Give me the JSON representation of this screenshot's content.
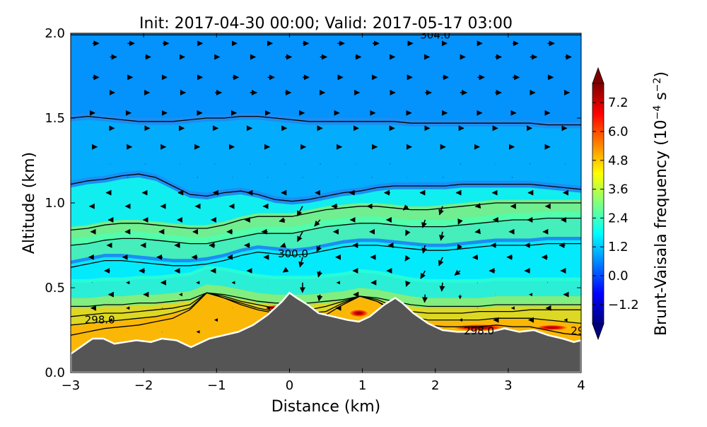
{
  "chart_data": {
    "type": "heatmap",
    "title": "Init: 2017-04-30 00:00; Valid: 2017-05-17 03:00",
    "xlabel": "Distance (km)",
    "ylabel": "Altitude (km)",
    "xlim": [
      -3,
      4
    ],
    "ylim": [
      0.0,
      2.0
    ],
    "x_ticks": [
      -3,
      -2,
      -1,
      0,
      1,
      2,
      3,
      4
    ],
    "x_tick_labels": [
      "−3",
      "−2",
      "−1",
      "0",
      "1",
      "2",
      "3",
      "4"
    ],
    "y_ticks": [
      0.0,
      0.5,
      1.0,
      1.5,
      2.0
    ],
    "y_tick_labels": [
      "0.0",
      "0.5",
      "1.0",
      "1.5",
      "2.0"
    ],
    "colorbar": {
      "label_main": "Brunt-Vaisala frequency (10",
      "label_exp": "−4",
      "label_mid": " s",
      "label_exp2": "−2",
      "label_end": ")",
      "vmin": -2.0,
      "vmax": 8.0,
      "ticks": [
        -1.2,
        0.0,
        1.2,
        2.4,
        3.6,
        4.8,
        6.0,
        7.2
      ],
      "tick_labels": [
        "−1.2",
        "0.0",
        "1.2",
        "2.4",
        "3.6",
        "4.8",
        "6.0",
        "7.2"
      ],
      "colormap": [
        "#00007f",
        "#0000ff",
        "#007fff",
        "#00ffff",
        "#7fff7f",
        "#ffff00",
        "#ff7f00",
        "#ff0000",
        "#7f0000"
      ],
      "extend": "both"
    },
    "terrain": {
      "color": "#555555",
      "x": [
        -3.0,
        -2.8,
        -2.7,
        -2.55,
        -2.4,
        -2.25,
        -2.1,
        -1.9,
        -1.75,
        -1.55,
        -1.35,
        -1.3,
        -1.1,
        -0.9,
        -0.7,
        -0.5,
        -0.3,
        -0.1,
        0.0,
        0.1,
        0.25,
        0.4,
        0.6,
        0.8,
        0.95,
        1.1,
        1.3,
        1.45,
        1.55,
        1.7,
        1.9,
        2.1,
        2.3,
        2.55,
        2.75,
        2.95,
        3.15,
        3.35,
        3.55,
        3.75,
        3.9,
        4.0
      ],
      "y": [
        0.11,
        0.17,
        0.2,
        0.2,
        0.17,
        0.18,
        0.19,
        0.18,
        0.2,
        0.19,
        0.15,
        0.16,
        0.2,
        0.22,
        0.24,
        0.28,
        0.34,
        0.42,
        0.47,
        0.44,
        0.4,
        0.35,
        0.33,
        0.31,
        0.3,
        0.33,
        0.4,
        0.44,
        0.41,
        0.35,
        0.29,
        0.25,
        0.24,
        0.24,
        0.24,
        0.26,
        0.24,
        0.25,
        0.22,
        0.2,
        0.18,
        0.19
      ]
    },
    "isentropes": [
      {
        "y": [
          0.22,
          0.24,
          0.26,
          0.27,
          0.28,
          0.3,
          0.32,
          0.37,
          0.47,
          0.44,
          0.4,
          0.37,
          0.35,
          0.33,
          0.32,
          0.34,
          0.4,
          0.45,
          0.42,
          0.36,
          0.3,
          0.28,
          0.27,
          0.27,
          0.27,
          0.28,
          0.27,
          0.27,
          0.25,
          0.23,
          0.22
        ]
      },
      {
        "y": [
          0.28,
          0.29,
          0.3,
          0.31,
          0.32,
          0.33,
          0.35,
          0.38,
          0.47,
          0.44,
          0.41,
          0.38,
          0.36,
          0.35,
          0.35,
          0.36,
          0.41,
          0.45,
          0.42,
          0.37,
          0.33,
          0.31,
          0.31,
          0.31,
          0.31,
          0.32,
          0.32,
          0.32,
          0.31,
          0.3,
          0.29
        ]
      },
      {
        "y": [
          0.33,
          0.34,
          0.35,
          0.35,
          0.36,
          0.37,
          0.38,
          0.4,
          0.47,
          0.45,
          0.42,
          0.4,
          0.38,
          0.37,
          0.37,
          0.39,
          0.42,
          0.45,
          0.43,
          0.39,
          0.36,
          0.35,
          0.35,
          0.35,
          0.36,
          0.36,
          0.36,
          0.37,
          0.37,
          0.37,
          0.37
        ]
      },
      {
        "y": [
          0.39,
          0.39,
          0.4,
          0.4,
          0.41,
          0.41,
          0.42,
          0.43,
          0.47,
          0.46,
          0.44,
          0.42,
          0.41,
          0.41,
          0.41,
          0.42,
          0.43,
          0.45,
          0.44,
          0.42,
          0.4,
          0.39,
          0.39,
          0.39,
          0.39,
          0.4,
          0.4,
          0.4,
          0.4,
          0.4,
          0.4
        ]
      },
      {
        "y": [
          0.62,
          0.64,
          0.66,
          0.66,
          0.65,
          0.64,
          0.63,
          0.63,
          0.64,
          0.66,
          0.69,
          0.71,
          0.7,
          0.69,
          0.7,
          0.72,
          0.74,
          0.75,
          0.75,
          0.74,
          0.73,
          0.72,
          0.72,
          0.73,
          0.74,
          0.75,
          0.75,
          0.75,
          0.76,
          0.76,
          0.76
        ]
      },
      {
        "y": [
          0.75,
          0.76,
          0.78,
          0.79,
          0.79,
          0.78,
          0.77,
          0.76,
          0.76,
          0.78,
          0.8,
          0.82,
          0.82,
          0.82,
          0.84,
          0.86,
          0.87,
          0.88,
          0.88,
          0.87,
          0.86,
          0.86,
          0.86,
          0.87,
          0.88,
          0.89,
          0.9,
          0.9,
          0.91,
          0.91,
          0.91
        ]
      },
      {
        "y": [
          0.84,
          0.85,
          0.87,
          0.88,
          0.88,
          0.87,
          0.86,
          0.85,
          0.85,
          0.87,
          0.9,
          0.92,
          0.92,
          0.92,
          0.94,
          0.96,
          0.97,
          0.98,
          0.98,
          0.97,
          0.96,
          0.96,
          0.97,
          0.98,
          0.99,
          1.0,
          1.0,
          1.0,
          1.0,
          1.0,
          1.0
        ]
      },
      {
        "y": [
          1.11,
          1.13,
          1.14,
          1.16,
          1.17,
          1.15,
          1.1,
          1.05,
          1.04,
          1.06,
          1.07,
          1.05,
          1.02,
          1.01,
          1.02,
          1.04,
          1.06,
          1.07,
          1.09,
          1.1,
          1.1,
          1.1,
          1.1,
          1.11,
          1.11,
          1.11,
          1.11,
          1.11,
          1.1,
          1.09,
          1.08
        ]
      },
      {
        "y": [
          1.5,
          1.51,
          1.5,
          1.49,
          1.48,
          1.48,
          1.48,
          1.49,
          1.5,
          1.5,
          1.51,
          1.51,
          1.5,
          1.49,
          1.48,
          1.48,
          1.48,
          1.48,
          1.48,
          1.48,
          1.47,
          1.47,
          1.47,
          1.47,
          1.47,
          1.47,
          1.47,
          1.47,
          1.46,
          1.46,
          1.46
        ]
      },
      {
        "y": [
          1.99,
          1.99,
          1.99,
          1.99,
          1.99,
          1.99,
          1.99,
          1.99,
          1.99,
          1.99,
          1.99,
          1.99,
          1.99,
          1.99,
          1.99,
          1.99,
          1.99,
          1.99,
          1.99,
          1.99,
          1.99,
          1.99,
          1.99,
          1.99,
          1.99,
          1.99,
          1.99,
          1.99,
          1.99,
          1.99,
          1.99
        ]
      }
    ],
    "contour_labels": [
      {
        "text": "298.0",
        "x": -2.6,
        "y": 0.31
      },
      {
        "text": "300.0",
        "x": 0.05,
        "y": 0.7
      },
      {
        "text": "304.0",
        "x": 2.0,
        "y": 1.99
      },
      {
        "text": "298.0",
        "x": 2.6,
        "y": 0.245
      },
      {
        "text": "29",
        "x": 3.95,
        "y": 0.245
      }
    ],
    "hotspots": [
      {
        "x": 0.95,
        "y": 0.35,
        "rx": 0.15,
        "ry": 0.025,
        "value": 8.0
      },
      {
        "x": -0.2,
        "y": 0.38,
        "rx": 0.15,
        "ry": 0.02,
        "value": 6.5
      },
      {
        "x": 2.6,
        "y": 0.265,
        "rx": 0.4,
        "ry": 0.022,
        "value": 7.8
      },
      {
        "x": 3.6,
        "y": 0.265,
        "rx": 0.25,
        "ry": 0.018,
        "value": 7.0
      }
    ]
  }
}
